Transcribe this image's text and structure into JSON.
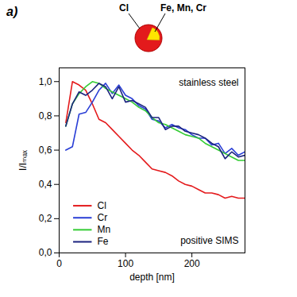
{
  "chart_data": {
    "type": "line",
    "title": "a)",
    "inset_labels": [
      "Cl",
      "Fe, Mn, Cr"
    ],
    "annotations": [
      "stainless steel",
      "positive SIMS"
    ],
    "x_label": "depth [nm]",
    "y_label": "I/Iₘₐₓ",
    "x": [
      10,
      20,
      30,
      40,
      50,
      60,
      70,
      80,
      90,
      100,
      110,
      120,
      130,
      140,
      150,
      160,
      170,
      180,
      190,
      200,
      210,
      220,
      230,
      240,
      250,
      260,
      270,
      280
    ],
    "series": [
      {
        "name": "Cl",
        "color": "#e41a1c",
        "values": [
          0.76,
          1.0,
          0.98,
          0.95,
          0.87,
          0.78,
          0.76,
          0.72,
          0.68,
          0.64,
          0.6,
          0.57,
          0.53,
          0.49,
          0.48,
          0.47,
          0.45,
          0.42,
          0.4,
          0.39,
          0.37,
          0.35,
          0.35,
          0.34,
          0.32,
          0.33,
          0.32,
          0.32
        ]
      },
      {
        "name": "Cr",
        "color": "#2a3fd6",
        "values": [
          0.6,
          0.62,
          0.81,
          0.82,
          0.88,
          0.95,
          0.99,
          0.93,
          0.98,
          0.92,
          0.9,
          0.86,
          0.84,
          0.78,
          0.77,
          0.73,
          0.75,
          0.73,
          0.72,
          0.69,
          0.67,
          0.67,
          0.63,
          0.64,
          0.58,
          0.61,
          0.57,
          0.59
        ]
      },
      {
        "name": "Mn",
        "color": "#33cc33",
        "values": [
          0.74,
          0.87,
          0.93,
          0.97,
          1.0,
          0.99,
          0.96,
          0.94,
          0.92,
          0.9,
          0.88,
          0.85,
          0.83,
          0.79,
          0.76,
          0.75,
          0.73,
          0.71,
          0.69,
          0.68,
          0.67,
          0.64,
          0.62,
          0.6,
          0.58,
          0.56,
          0.54,
          0.54
        ]
      },
      {
        "name": "Fe",
        "color": "#1b237f",
        "values": [
          0.74,
          0.87,
          0.94,
          0.92,
          0.95,
          0.99,
          0.97,
          0.9,
          0.97,
          0.88,
          0.89,
          0.87,
          0.85,
          0.79,
          0.79,
          0.72,
          0.74,
          0.74,
          0.71,
          0.7,
          0.69,
          0.67,
          0.64,
          0.62,
          0.55,
          0.59,
          0.56,
          0.57
        ]
      }
    ],
    "xlim": [
      0,
      280
    ],
    "ylim": [
      0,
      1.08
    ],
    "xticks": [
      0,
      100,
      200
    ],
    "yticks": [
      {
        "value": 0,
        "label": "0,0"
      },
      {
        "value": 0.2,
        "label": "0,2"
      },
      {
        "value": 0.4,
        "label": "0,4"
      },
      {
        "value": 0.6,
        "label": "0,6"
      },
      {
        "value": 0.8,
        "label": "0,8"
      },
      {
        "value": 1.0,
        "label": "1,0"
      }
    ],
    "legend": "bottom-left"
  }
}
